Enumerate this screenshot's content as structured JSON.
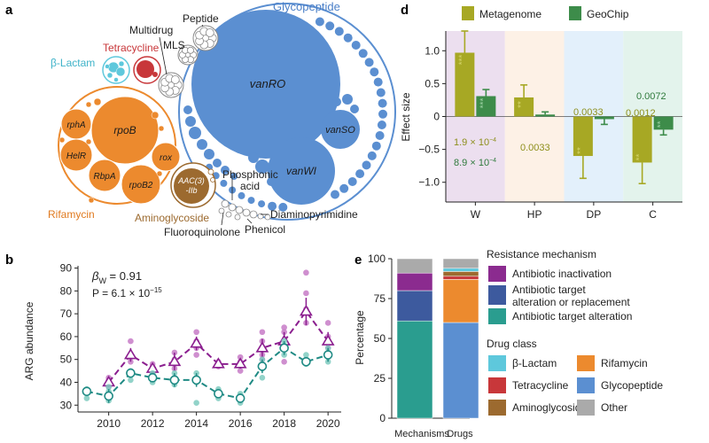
{
  "panel_letters": {
    "a": "a",
    "b": "b",
    "d": "d",
    "e": "e"
  },
  "panel_a": {
    "groups": {
      "glycopeptide": "Glycopeptide",
      "rifamycin": "Rifamycin",
      "aminoglycoside": "Aminoglycoside",
      "beta_lactam": "β-Lactam",
      "tetracycline": "Tetracycline",
      "multidrug": "Multidrug",
      "mls": "MLS",
      "peptide": "Peptide",
      "phosphonic": "Phosphonic",
      "acid": "acid",
      "diaminopyrimidine": "Diaminopyrimidine",
      "phenicol": "Phenicol",
      "fluoroquinolone": "Fluoroquinolone"
    },
    "genes": {
      "vanRO": "vanRO",
      "vanSO": "vanSO",
      "vanWI": "vanWI",
      "rpoB": "rpoB",
      "rphA": "rphA",
      "HelR": "HelR",
      "rox": "rox",
      "RbpA": "RbpA",
      "rpoB2": "rpoB2",
      "aac1": "AAC(3)",
      "aac2": "-IIb"
    },
    "colors": {
      "glycopeptide": "#5b8fd1",
      "rifamycin": "#ec8a2e",
      "aminoglycoside": "#9c6a2f",
      "beta_lactam": "#5ec8dc",
      "tetracycline": "#c8373a",
      "other": "#d9d9d9"
    }
  },
  "chart_data": [
    {
      "panel": "b",
      "type": "scatter",
      "xlabel": "",
      "ylabel": "ARG abundance",
      "xlim": [
        2008.6,
        2020.6
      ],
      "ylim": [
        27,
        91
      ],
      "xticks": [
        "2010",
        "2012",
        "2014",
        "2016",
        "2018",
        "2020"
      ],
      "xtick_values": [
        2010,
        2012,
        2014,
        2016,
        2018,
        2020
      ],
      "yticks": [
        "30",
        "40",
        "50",
        "60",
        "70",
        "80",
        "90"
      ],
      "ytick_values": [
        30,
        40,
        50,
        60,
        70,
        80,
        90
      ],
      "annotations": {
        "beta_prefix": "β",
        "beta_sub": "W",
        "beta_value": " = 0.91",
        "p_prefix": "P = 6.1 × 10",
        "p_exp": "−15"
      },
      "series": [
        {
          "color": "#8b1f8f",
          "light_color": "#c77bc7",
          "mean_x": [
            2010,
            2011,
            2012,
            2013,
            2014,
            2015,
            2016,
            2017,
            2018,
            2019,
            2020
          ],
          "mean_y": [
            40,
            52,
            46,
            49,
            57,
            48,
            48,
            55,
            58,
            71,
            58
          ],
          "err": [
            2,
            3,
            2,
            4,
            3,
            1.5,
            2,
            4,
            4,
            6,
            4
          ],
          "points_x": [
            2010,
            2010,
            2010,
            2011,
            2011,
            2011,
            2011,
            2012,
            2012,
            2012,
            2012,
            2013,
            2013,
            2013,
            2013,
            2014,
            2014,
            2014,
            2014,
            2015,
            2015,
            2015,
            2015,
            2016,
            2016,
            2016,
            2016,
            2017,
            2017,
            2017,
            2017,
            2018,
            2018,
            2018,
            2018,
            2019,
            2019,
            2019,
            2019,
            2020,
            2020,
            2020,
            2020
          ],
          "points_y": [
            38,
            41,
            42,
            58,
            52,
            49,
            51,
            48,
            45,
            47,
            44,
            53,
            48,
            50,
            46,
            62,
            58,
            55,
            52,
            49,
            47,
            48,
            47,
            51,
            48,
            45,
            49,
            62,
            58,
            52,
            50,
            64,
            62,
            58,
            49,
            88,
            79,
            72,
            66,
            66,
            60,
            57,
            55
          ]
        },
        {
          "color": "#1f8a84",
          "light_color": "#7fcbbf",
          "mean_x": [
            2009,
            2010,
            2011,
            2012,
            2013,
            2014,
            2015,
            2016,
            2017,
            2018,
            2019,
            2020
          ],
          "mean_y": [
            36,
            34,
            44,
            42,
            41,
            41,
            35,
            33,
            47,
            55,
            49,
            52
          ],
          "err": [
            2,
            3,
            2,
            2,
            3,
            3,
            2,
            2,
            3,
            3,
            2,
            3
          ],
          "points_x": [
            2009,
            2009,
            2009,
            2010,
            2010,
            2010,
            2011,
            2011,
            2011,
            2012,
            2012,
            2012,
            2013,
            2013,
            2013,
            2014,
            2014,
            2014,
            2015,
            2015,
            2015,
            2016,
            2016,
            2016,
            2017,
            2017,
            2017,
            2018,
            2018,
            2018,
            2019,
            2019,
            2019,
            2020,
            2020,
            2020
          ],
          "points_y": [
            37,
            35,
            33,
            36,
            32,
            38,
            45,
            43,
            41,
            44,
            42,
            40,
            39,
            42,
            44,
            44,
            40,
            31,
            37,
            33,
            36,
            35,
            31,
            34,
            50,
            46,
            42,
            56,
            52,
            58,
            52,
            48,
            50,
            55,
            51,
            49
          ]
        }
      ]
    },
    {
      "panel": "d",
      "type": "bar",
      "xlabel": "",
      "ylabel": "Effect size",
      "ylim": [
        -1.3,
        1.3
      ],
      "yticks": [
        "−1.0",
        "−0.5",
        "0",
        "0.5",
        "1.0"
      ],
      "ytick_values": [
        -1.0,
        -0.5,
        0,
        0.5,
        1.0
      ],
      "categories": [
        "W",
        "HP",
        "DP",
        "C"
      ],
      "category_bg": [
        "#ecdfef",
        "#fdf1e6",
        "#e3f0fb",
        "#e3f3ec"
      ],
      "legend_position": "top",
      "series": [
        {
          "name": "Metagenome",
          "color": "#a7a824",
          "values": [
            0.97,
            0.29,
            -0.6,
            -0.7
          ],
          "err": [
            0.33,
            0.19,
            0.34,
            0.32
          ],
          "stars": [
            "***",
            "**",
            "**",
            "**"
          ]
        },
        {
          "name": "GeoChip",
          "color": "#3d8c4a",
          "values": [
            0.31,
            0.03,
            -0.04,
            -0.2
          ],
          "err": [
            0.1,
            0.04,
            0.08,
            0.08
          ],
          "stars": [
            "***",
            "",
            "",
            "**"
          ]
        }
      ],
      "pvalue_labels": {
        "W_meta_base": "1.9 × 10",
        "W_meta_exp": "−4",
        "W_geo_base": "8.9 × 10",
        "W_geo_exp": "−4",
        "HP": "0.0033",
        "DP": "0.0033",
        "C_meta": "0.0012",
        "C_geo": "0.0072"
      }
    },
    {
      "panel": "e",
      "type": "bar",
      "stacked": true,
      "xlabel": "",
      "ylabel": "Percentage",
      "ylim": [
        0,
        100
      ],
      "yticks": [
        "0",
        "25",
        "50",
        "75",
        "100"
      ],
      "ytick_values": [
        0,
        25,
        50,
        75,
        100
      ],
      "categories": [
        "Mechanisms",
        "Drugs"
      ],
      "series": [
        {
          "bar": "Mechanisms",
          "name": "Antibiotic target alteration",
          "color": "#2a9d8f",
          "value": 61
        },
        {
          "bar": "Mechanisms",
          "name": "Antibiotic target alteration or replacement",
          "color": "#3d5a9e",
          "value": 19
        },
        {
          "bar": "Mechanisms",
          "name": "Antibiotic inactivation",
          "color": "#8b2b8f",
          "value": 11
        },
        {
          "bar": "Mechanisms",
          "name": "Other",
          "color": "#aaaaaa",
          "value": 9
        },
        {
          "bar": "Drugs",
          "name": "Glycopeptide",
          "color": "#5b8fd1",
          "value": 60
        },
        {
          "bar": "Drugs",
          "name": "Rifamycin",
          "color": "#ec8a2e",
          "value": 27
        },
        {
          "bar": "Drugs",
          "name": "Tetracycline",
          "color": "#c8373a",
          "value": 2
        },
        {
          "bar": "Drugs",
          "name": "Aminoglycoside",
          "color": "#9c6a2f",
          "value": 3
        },
        {
          "bar": "Drugs",
          "name": "β-Lactam",
          "color": "#5ec8dc",
          "value": 2
        },
        {
          "bar": "Drugs",
          "name": "Other",
          "color": "#aaaaaa",
          "value": 6
        }
      ],
      "legend": {
        "mech_title": "Resistance mechanism",
        "mech_items": [
          {
            "label": "Antibiotic inactivation",
            "color": "#8b2b8f"
          },
          {
            "label1": "Antibiotic target",
            "label2": "alteration or replacement",
            "color": "#3d5a9e"
          },
          {
            "label": "Antibiotic target alteration",
            "color": "#2a9d8f"
          }
        ],
        "drug_title": "Drug class",
        "drug_items": [
          {
            "label": "β-Lactam",
            "color": "#5ec8dc"
          },
          {
            "label": "Rifamycin",
            "color": "#ec8a2e"
          },
          {
            "label": "Tetracycline",
            "color": "#c8373a"
          },
          {
            "label": "Glycopeptide",
            "color": "#5b8fd1"
          },
          {
            "label": "Aminoglycoside",
            "color": "#9c6a2f"
          },
          {
            "label": "Other",
            "color": "#aaaaaa"
          }
        ]
      }
    }
  ]
}
